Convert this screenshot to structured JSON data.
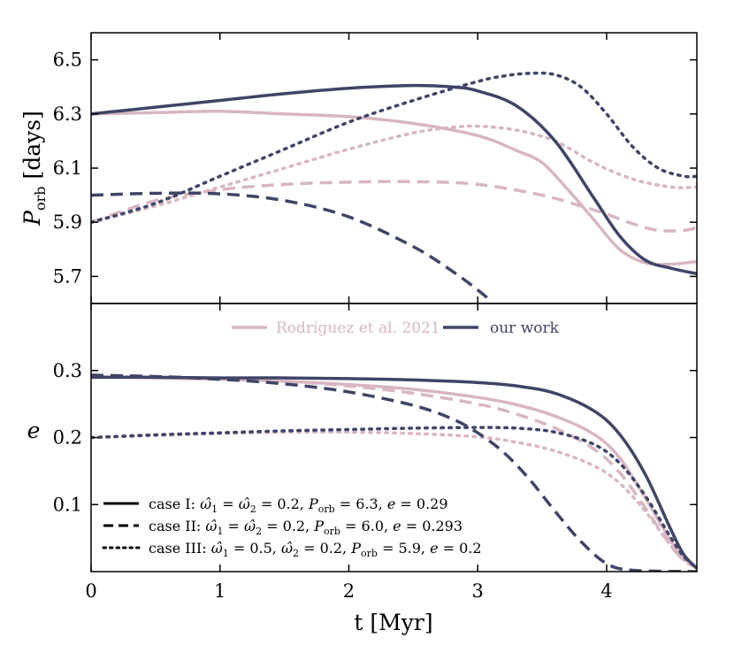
{
  "colors": {
    "rodriguez": "#d8b6c2",
    "ours": "#3f4566"
  },
  "legend": {
    "rodriguez_label": "Rodríguez et al. 2021",
    "ours_label": "our work"
  },
  "case_legend": {
    "case1": {
      "prefix": "case I: ",
      "w1": "ω̂",
      "eq1": " = ",
      "w2": "ω̂",
      "eq2": " = 0.2, ",
      "P": "P",
      "sub": "orb",
      "pval": " = 6.3, ",
      "e": "e",
      "eval": " = 0.29"
    },
    "case2": {
      "prefix": "case II: ",
      "w1": "ω̂",
      "eq1": " = ",
      "w2": "ω̂",
      "eq2": " = 0.2, ",
      "P": "P",
      "sub": "orb",
      "pval": " = 6.0, ",
      "e": "e",
      "eval": " = 0.293"
    },
    "case3": {
      "prefix": "case III: ",
      "w1": "ω̂",
      "eq1": " = 0.5, ",
      "w2": "ω̂",
      "eq2": " = 0.2, ",
      "P": "P",
      "sub": "orb",
      "pval": " = 5.9, ",
      "e": "e",
      "eval": " = 0.2"
    }
  },
  "chart_data": [
    {
      "type": "line",
      "panel": "top",
      "xlabel": "",
      "ylabel_main": "P",
      "ylabel_sub": "orb",
      "ylabel_unit": " [days]",
      "xlim": [
        0,
        4.7
      ],
      "ylim": [
        5.6,
        6.6
      ],
      "yticks": [
        5.7,
        5.9,
        6.1,
        6.3,
        6.5
      ],
      "ytick_labels": [
        "5.7",
        "5.9",
        "6.1",
        "6.3",
        "6.5"
      ],
      "series": [
        {
          "case": "I",
          "source": "Rodríguez et al. 2021",
          "style": "solid",
          "color": "#d8b6c2",
          "x": [
            0,
            0.5,
            1.0,
            1.5,
            2.0,
            2.5,
            3.0,
            3.3,
            3.5,
            3.7,
            3.9,
            4.1,
            4.3,
            4.5,
            4.7
          ],
          "y": [
            6.3,
            6.305,
            6.31,
            6.3,
            6.29,
            6.265,
            6.22,
            6.165,
            6.12,
            6.02,
            5.91,
            5.8,
            5.75,
            5.745,
            5.755
          ]
        },
        {
          "case": "II",
          "source": "Rodríguez et al. 2021",
          "style": "dashed",
          "color": "#d8b6c2",
          "x": [
            0,
            0.5,
            1.0,
            1.5,
            2.0,
            2.5,
            3.0,
            3.5,
            3.8,
            4.0,
            4.2,
            4.4,
            4.6,
            4.7
          ],
          "y": [
            5.9,
            5.98,
            6.02,
            6.04,
            6.048,
            6.05,
            6.04,
            6.0,
            5.96,
            5.93,
            5.895,
            5.87,
            5.87,
            5.88
          ]
        },
        {
          "case": "III",
          "source": "Rodríguez et al. 2021",
          "style": "dotted",
          "color": "#d8b6c2",
          "x": [
            0,
            0.5,
            1.0,
            1.5,
            2.0,
            2.5,
            2.8,
            3.0,
            3.3,
            3.6,
            3.9,
            4.2,
            4.5,
            4.7
          ],
          "y": [
            5.9,
            5.96,
            6.03,
            6.1,
            6.17,
            6.23,
            6.25,
            6.255,
            6.24,
            6.2,
            6.12,
            6.06,
            6.03,
            6.03
          ]
        },
        {
          "case": "I",
          "source": "our work",
          "style": "solid",
          "color": "#3f4566",
          "x": [
            0,
            0.5,
            1.0,
            1.5,
            2.0,
            2.5,
            2.8,
            3.0,
            3.3,
            3.6,
            3.9,
            4.1,
            4.3,
            4.5,
            4.7
          ],
          "y": [
            6.3,
            6.325,
            6.35,
            6.375,
            6.395,
            6.405,
            6.4,
            6.385,
            6.33,
            6.2,
            5.99,
            5.85,
            5.76,
            5.73,
            5.71
          ]
        },
        {
          "case": "II",
          "source": "our work",
          "style": "dashed",
          "color": "#3f4566",
          "x": [
            0,
            0.5,
            1.0,
            1.5,
            2.0,
            2.5,
            2.8,
            3.0,
            3.1
          ],
          "y": [
            6.0,
            6.007,
            6.005,
            5.98,
            5.92,
            5.81,
            5.72,
            5.65,
            5.61
          ]
        },
        {
          "case": "III",
          "source": "our work",
          "style": "dotted",
          "color": "#3f4566",
          "x": [
            0,
            0.5,
            1.0,
            1.5,
            2.0,
            2.5,
            3.0,
            3.2,
            3.4,
            3.6,
            3.8,
            4.0,
            4.2,
            4.4,
            4.6,
            4.7
          ],
          "y": [
            5.9,
            5.97,
            6.07,
            6.17,
            6.27,
            6.35,
            6.42,
            6.44,
            6.45,
            6.445,
            6.4,
            6.3,
            6.18,
            6.1,
            6.07,
            6.07
          ]
        }
      ]
    },
    {
      "type": "line",
      "panel": "bottom",
      "xlabel": "t [Myr]",
      "ylabel": "e",
      "xlim": [
        0,
        4.7
      ],
      "ylim": [
        0.0,
        0.4
      ],
      "xticks": [
        0,
        1,
        2,
        3,
        4
      ],
      "xtick_labels": [
        "0",
        "1",
        "2",
        "3",
        "4"
      ],
      "yticks": [
        0.1,
        0.2,
        0.3
      ],
      "ytick_labels": [
        "0.1",
        "0.2",
        "0.3"
      ],
      "series": [
        {
          "case": "I",
          "source": "Rodríguez et al. 2021",
          "style": "solid",
          "color": "#d8b6c2",
          "x": [
            0,
            0.5,
            1.0,
            1.5,
            2.0,
            2.5,
            3.0,
            3.3,
            3.6,
            3.9,
            4.1,
            4.3,
            4.5,
            4.6,
            4.7
          ],
          "y": [
            0.29,
            0.289,
            0.287,
            0.284,
            0.279,
            0.272,
            0.26,
            0.249,
            0.232,
            0.205,
            0.17,
            0.11,
            0.045,
            0.02,
            0.005
          ]
        },
        {
          "case": "II",
          "source": "Rodríguez et al. 2021",
          "style": "dashed",
          "color": "#d8b6c2",
          "x": [
            0,
            0.5,
            1.0,
            1.5,
            2.0,
            2.5,
            3.0,
            3.3,
            3.6,
            3.9,
            4.1,
            4.3,
            4.5,
            4.6,
            4.7
          ],
          "y": [
            0.293,
            0.291,
            0.288,
            0.284,
            0.277,
            0.266,
            0.25,
            0.235,
            0.214,
            0.183,
            0.148,
            0.095,
            0.038,
            0.017,
            0.005
          ]
        },
        {
          "case": "III",
          "source": "Rodríguez et al. 2021",
          "style": "dotted",
          "color": "#d8b6c2",
          "x": [
            0,
            0.5,
            1.0,
            1.5,
            2.0,
            2.5,
            3.0,
            3.3,
            3.6,
            3.9,
            4.1,
            4.3,
            4.5,
            4.6,
            4.7
          ],
          "y": [
            0.2,
            0.203,
            0.206,
            0.208,
            0.208,
            0.206,
            0.201,
            0.193,
            0.18,
            0.158,
            0.132,
            0.09,
            0.038,
            0.017,
            0.005
          ]
        },
        {
          "case": "I",
          "source": "our work",
          "style": "solid",
          "color": "#3f4566",
          "x": [
            0,
            0.5,
            1.0,
            1.5,
            2.0,
            2.5,
            3.0,
            3.3,
            3.6,
            3.9,
            4.1,
            4.3,
            4.5,
            4.6,
            4.7
          ],
          "y": [
            0.29,
            0.29,
            0.289,
            0.289,
            0.288,
            0.286,
            0.282,
            0.277,
            0.266,
            0.24,
            0.205,
            0.145,
            0.062,
            0.025,
            0.005
          ]
        },
        {
          "case": "II",
          "source": "our work",
          "style": "dashed",
          "color": "#3f4566",
          "x": [
            0,
            0.5,
            1.0,
            1.5,
            2.0,
            2.5,
            2.8,
            3.0,
            3.2,
            3.4,
            3.6,
            3.8,
            4.0,
            4.2,
            4.7
          ],
          "y": [
            0.293,
            0.291,
            0.287,
            0.28,
            0.268,
            0.248,
            0.228,
            0.207,
            0.178,
            0.138,
            0.09,
            0.045,
            0.012,
            0.002,
            0.0
          ]
        },
        {
          "case": "III",
          "source": "our work",
          "style": "dotted",
          "color": "#3f4566",
          "x": [
            0,
            0.5,
            1.0,
            1.5,
            2.0,
            2.5,
            3.0,
            3.3,
            3.6,
            3.9,
            4.1,
            4.3,
            4.5,
            4.6,
            4.7
          ],
          "y": [
            0.2,
            0.204,
            0.207,
            0.21,
            0.212,
            0.214,
            0.215,
            0.214,
            0.208,
            0.19,
            0.162,
            0.113,
            0.05,
            0.022,
            0.006
          ]
        }
      ]
    }
  ]
}
